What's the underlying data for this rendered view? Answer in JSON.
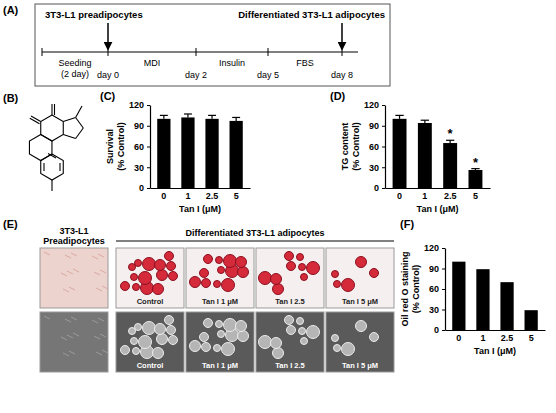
{
  "chart_data": [
    {
      "type": "bar",
      "panel": "(C)",
      "y_label": "Survival (% Control)",
      "x_label": "Tan I (μM)",
      "categories": [
        "0",
        "1",
        "2.5",
        "5"
      ],
      "values": [
        100,
        102,
        100,
        97
      ],
      "errors": [
        5,
        5,
        5,
        5
      ],
      "color": "#000000",
      "ylim": [
        0,
        120
      ],
      "yticks": [
        0,
        30,
        60,
        90,
        120
      ]
    },
    {
      "type": "bar",
      "panel": "(D)",
      "y_label": "TG content (% Control)",
      "x_label": "Tan I (μM)",
      "categories": [
        "0",
        "1",
        "2.5",
        "5"
      ],
      "values": [
        100,
        94,
        65,
        26
      ],
      "errors": [
        5,
        4,
        4,
        2
      ],
      "significance": [
        null,
        null,
        "*",
        "*"
      ],
      "color": "#000000",
      "ylim": [
        0,
        120
      ],
      "yticks": [
        0,
        30,
        60,
        90,
        120
      ]
    },
    {
      "type": "bar",
      "panel": "(F)",
      "y_label": "Oil red O staining (% Control)",
      "x_label": "Tan I (μM)",
      "categories": [
        "0",
        "1",
        "2.5",
        "5"
      ],
      "values": [
        100,
        89,
        70,
        29
      ],
      "color": "#000000",
      "ylim": [
        0,
        120
      ],
      "yticks": [
        0,
        30,
        60,
        90,
        120
      ]
    }
  ],
  "timeline": {
    "panel": "(A)",
    "start": "3T3-L1 preadipocytes",
    "end": "Differentiated 3T3-L1 adipocytes",
    "stages": [
      "Seeding (2 day)",
      "MDI",
      "Insulin",
      "FBS"
    ],
    "days": [
      "day 0",
      "day 2",
      "day 5",
      "day 8"
    ]
  },
  "structure": {
    "panel": "(B)"
  },
  "images": {
    "panel": "(E)",
    "preadipocytes": "3T3-L1 Preadipocytes",
    "differentiated": "Differentiated 3T3-L1 adipocytes",
    "conditions": [
      "Control",
      "Tan I 1 μM",
      "Tan I 2.5",
      "Tan I 5 μM"
    ]
  }
}
